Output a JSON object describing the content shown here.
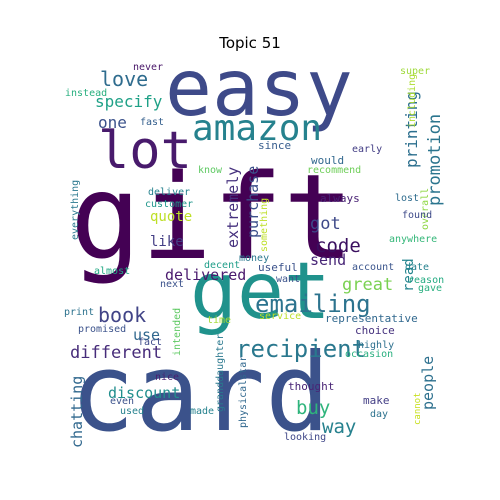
{
  "chart_data": {
    "type": "wordcloud",
    "title": "Topic 51",
    "words": [
      {
        "text": "card",
        "color": "#3b528b"
      },
      {
        "text": "gift",
        "color": "#440154"
      },
      {
        "text": "easy",
        "color": "#3e4a89"
      },
      {
        "text": "get",
        "color": "#20928c"
      },
      {
        "text": "lot",
        "color": "#481a6c"
      },
      {
        "text": "amazon",
        "color": "#26828e"
      },
      {
        "text": "emailing",
        "color": "#2c738e"
      },
      {
        "text": "recipient",
        "color": "#2a788e"
      },
      {
        "text": "code",
        "color": "#3a0f5f"
      },
      {
        "text": "book",
        "color": "#414487"
      },
      {
        "text": "love",
        "color": "#2f6c8e"
      },
      {
        "text": "different",
        "color": "#472c7a"
      },
      {
        "text": "promotion",
        "color": "#2b758e"
      },
      {
        "text": "great",
        "color": "#7ad151"
      },
      {
        "text": "delivered",
        "color": "#4a1a6e"
      },
      {
        "text": "way",
        "color": "#26818e"
      },
      {
        "text": "buy",
        "color": "#2fb47c"
      },
      {
        "text": "printing",
        "color": "#2c6f8e"
      },
      {
        "text": "specify",
        "color": "#1fa187"
      },
      {
        "text": "extremely",
        "color": "#46317e"
      },
      {
        "text": "purchase",
        "color": "#3c4f8a"
      },
      {
        "text": "discount",
        "color": "#218e8d"
      },
      {
        "text": "people",
        "color": "#2d708e"
      },
      {
        "text": "chatting",
        "color": "#31688e"
      },
      {
        "text": "send",
        "color": "#482677"
      },
      {
        "text": "one",
        "color": "#3b528b"
      },
      {
        "text": "got",
        "color": "#3e4989"
      },
      {
        "text": "quote",
        "color": "#bddf26"
      },
      {
        "text": "like",
        "color": "#433e85"
      },
      {
        "text": "use",
        "color": "#31688e"
      },
      {
        "text": "read",
        "color": "#25858e"
      },
      {
        "text": "always",
        "color": "#482173"
      },
      {
        "text": "fast",
        "color": "#345f8d"
      },
      {
        "text": "deliver",
        "color": "#26828e"
      },
      {
        "text": "customer",
        "color": "#1f968b"
      },
      {
        "text": "instead",
        "color": "#29af7f"
      },
      {
        "text": "never",
        "color": "#481668"
      },
      {
        "text": "super",
        "color": "#9fda3a"
      },
      {
        "text": "including",
        "color": "#addc30"
      },
      {
        "text": "since",
        "color": "#365c8d"
      },
      {
        "text": "early",
        "color": "#433e85"
      },
      {
        "text": "would",
        "color": "#31688e"
      },
      {
        "text": "recommend",
        "color": "#6ece58"
      },
      {
        "text": "know",
        "color": "#5ec962"
      },
      {
        "text": "something",
        "color": "#bddf26"
      },
      {
        "text": "lost",
        "color": "#2f6c8e"
      },
      {
        "text": "overall",
        "color": "#8fd744"
      },
      {
        "text": "anywhere",
        "color": "#35b779"
      },
      {
        "text": "found",
        "color": "#3e4a89"
      },
      {
        "text": "everything",
        "color": "#2a788e"
      },
      {
        "text": "almost",
        "color": "#22a884"
      },
      {
        "text": "decent",
        "color": "#1f9e89"
      },
      {
        "text": "money",
        "color": "#2a788e"
      },
      {
        "text": "useful",
        "color": "#3b528b"
      },
      {
        "text": "want",
        "color": "#3b528b"
      },
      {
        "text": "next",
        "color": "#3b528b"
      },
      {
        "text": "account",
        "color": "#3a548c"
      },
      {
        "text": "date",
        "color": "#26828e"
      },
      {
        "text": "reason",
        "color": "#25ab82"
      },
      {
        "text": "gave",
        "color": "#29af7f"
      },
      {
        "text": "print",
        "color": "#2c728e"
      },
      {
        "text": "time",
        "color": "#a5db36"
      },
      {
        "text": "service",
        "color": "#bddf26"
      },
      {
        "text": "representative",
        "color": "#31688e"
      },
      {
        "text": "promised",
        "color": "#3b528b"
      },
      {
        "text": "fact",
        "color": "#3e4a89"
      },
      {
        "text": "intended",
        "color": "#5ec962"
      },
      {
        "text": "choice",
        "color": "#46327e"
      },
      {
        "text": "highly",
        "color": "#2d708e"
      },
      {
        "text": "occasion",
        "color": "#29af7f"
      },
      {
        "text": "nice",
        "color": "#481f70"
      },
      {
        "text": "even",
        "color": "#3b528b"
      },
      {
        "text": "used",
        "color": "#26828e"
      },
      {
        "text": "made",
        "color": "#26828e"
      },
      {
        "text": "granddaughter",
        "color": "#2a788e"
      },
      {
        "text": "physicalstar",
        "color": "#31688e"
      },
      {
        "text": "thought",
        "color": "#482475"
      },
      {
        "text": "looking",
        "color": "#3f4788"
      },
      {
        "text": "make",
        "color": "#433e85"
      },
      {
        "text": "day",
        "color": "#2c728e"
      },
      {
        "text": "cannot",
        "color": "#c8e020"
      }
    ]
  }
}
